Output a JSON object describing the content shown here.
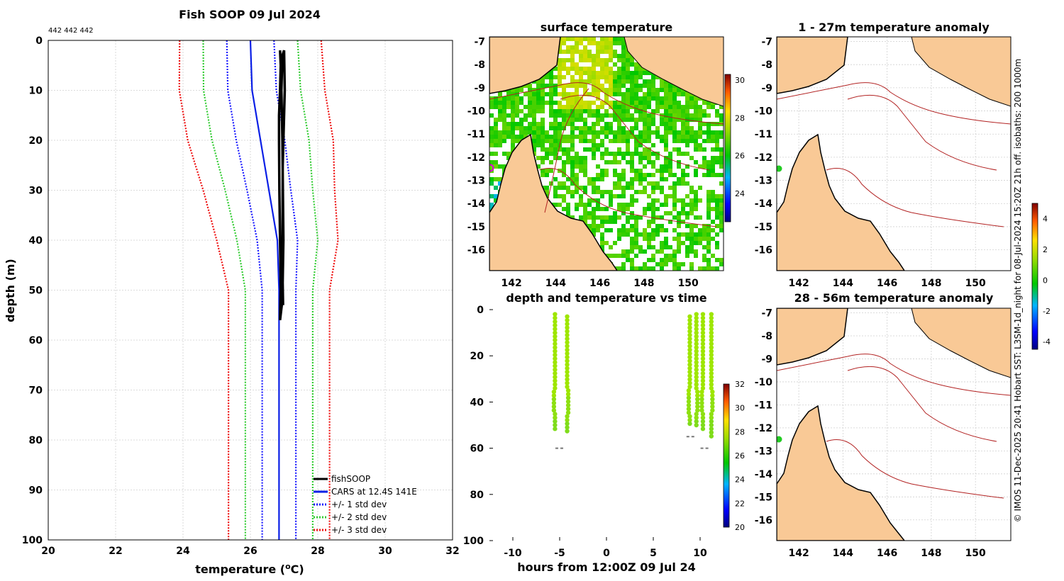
{
  "colors": {
    "fish": "#000000",
    "cars": "#0a1fe6",
    "std1": "#1a1aff",
    "std2": "#33cc33",
    "std3": "#ee1111",
    "land": "#f9c996",
    "iso": "#b22222"
  },
  "chart_data": [
    {
      "id": "profile",
      "type": "line",
      "title": "Fish SOOP 09 Jul 2024",
      "subtitle": "442 442 442",
      "xlabel": "temperature (°C)",
      "ylabel": "depth (m)",
      "xlim": [
        20,
        32
      ],
      "ylim": [
        0,
        100
      ],
      "xticks": [
        20,
        22,
        24,
        26,
        28,
        30,
        32
      ],
      "yticks": [
        0,
        10,
        20,
        30,
        40,
        50,
        60,
        70,
        80,
        90,
        100
      ],
      "legend": [
        "fishSOOP",
        "CARS at 12.4S 141E",
        "+/- 1 std dev",
        "+/- 2 std dev",
        "+/- 3 std dev"
      ],
      "depths": [
        0,
        10,
        20,
        30,
        40,
        50,
        100
      ],
      "cars": [
        26.0,
        26.05,
        26.3,
        26.55,
        26.8,
        26.85,
        26.85
      ],
      "std_offsets": [
        0.7,
        0.72,
        0.72,
        0.65,
        0.6,
        0.5,
        0.5
      ],
      "fish": [
        [
          26.88,
          2
        ],
        [
          26.9,
          5
        ],
        [
          26.88,
          10
        ],
        [
          26.85,
          15
        ],
        [
          26.85,
          20
        ],
        [
          26.86,
          30
        ],
        [
          26.88,
          40
        ],
        [
          26.9,
          50
        ],
        [
          26.88,
          56
        ],
        [
          26.95,
          52
        ],
        [
          26.98,
          40
        ],
        [
          26.95,
          20
        ],
        [
          26.92,
          10
        ],
        [
          26.95,
          3
        ],
        [
          27.0,
          2
        ],
        [
          27.02,
          10
        ],
        [
          26.96,
          25
        ],
        [
          26.95,
          45
        ],
        [
          26.97,
          53
        ]
      ]
    },
    {
      "id": "timeseries",
      "type": "scatter",
      "title": "depth and temperature vs time",
      "xlabel": "hours from 12:00Z 09 Jul 24",
      "xlim": [
        -12.5,
        12.5
      ],
      "ylim": [
        0,
        100
      ],
      "xticks": [
        -10,
        -5,
        0,
        5,
        10
      ],
      "yticks": [
        0,
        20,
        40,
        60,
        80,
        100
      ],
      "colorbar": {
        "ticks": [
          32,
          30,
          28,
          26,
          24,
          22,
          20
        ],
        "range": [
          20,
          32
        ]
      },
      "casts": [
        {
          "x": -5.5,
          "top": 2,
          "bottom": 52
        },
        {
          "x": -4.2,
          "top": 3,
          "bottom": 53
        },
        {
          "x": 8.9,
          "top": 3,
          "bottom": 51
        },
        {
          "x": 9.6,
          "top": 2,
          "bottom": 51
        },
        {
          "x": 10.3,
          "top": 2,
          "bottom": 53
        },
        {
          "x": 11.2,
          "top": 2,
          "bottom": 56
        }
      ],
      "bottom_marks": [
        {
          "x": -5,
          "depth": 60
        },
        {
          "x": 9,
          "depth": 55
        },
        {
          "x": 10.5,
          "depth": 60
        }
      ]
    },
    {
      "id": "sst",
      "type": "heatmap",
      "title": "surface temperature",
      "xticks": [
        142,
        144,
        146,
        148,
        150
      ],
      "yticks": [
        -7,
        -8,
        -9,
        -10,
        -11,
        -12,
        -13,
        -14,
        -15,
        -16
      ],
      "colorbar": {
        "ticks": [
          30,
          28,
          26,
          24
        ],
        "range": [
          22.5,
          30.3
        ]
      }
    },
    {
      "id": "anom1",
      "type": "heatmap",
      "title": "1 - 27m temperature anomaly",
      "xticks": [
        142,
        144,
        146,
        148,
        150
      ],
      "yticks": [
        -7,
        -8,
        -9,
        -10,
        -11,
        -12,
        -13,
        -14,
        -15,
        -16
      ],
      "colorbar": {
        "ticks": [
          4,
          2,
          0,
          -2,
          -4
        ],
        "range": [
          -4.5,
          5
        ]
      }
    },
    {
      "id": "anom2",
      "type": "heatmap",
      "title": "28 - 56m temperature anomaly",
      "xticks": [
        142,
        144,
        146,
        148,
        150
      ],
      "yticks": [
        -7,
        -8,
        -9,
        -10,
        -11,
        -12,
        -13,
        -14,
        -15,
        -16
      ]
    }
  ],
  "side_caption": "© IMOS 11-Dec-2025 20:41 Hobart SST: L3SM-1d_night for 08-Jul-2024 15:20Z 21h off. isobaths: 200  1000m"
}
